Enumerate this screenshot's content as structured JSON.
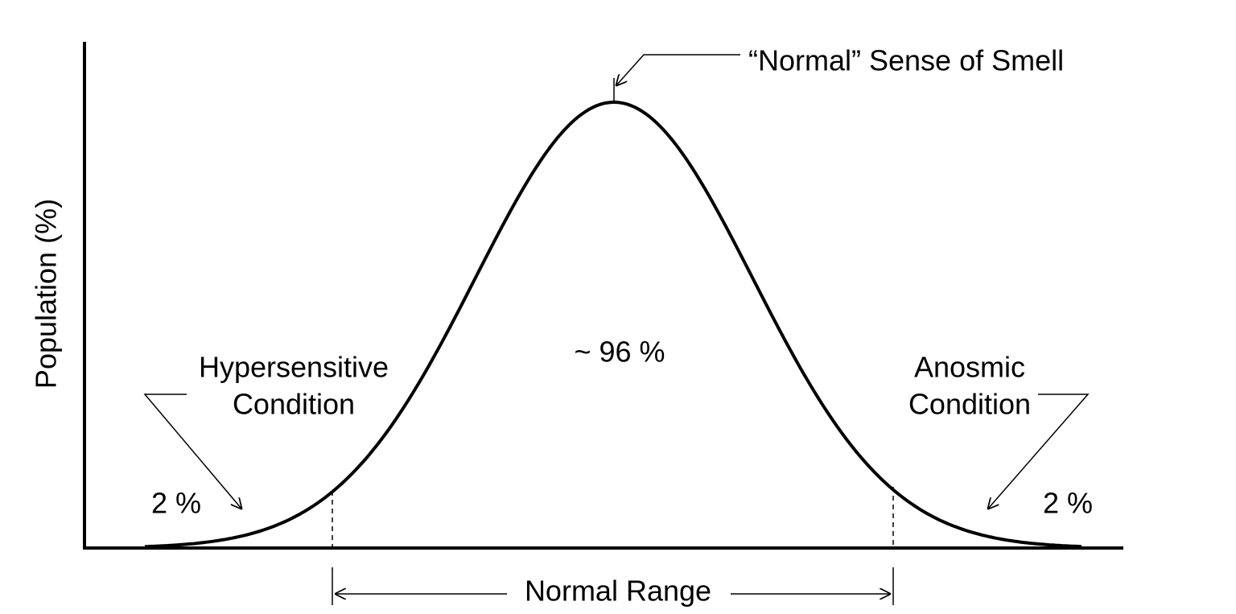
{
  "axis_label": "Population (%)",
  "peak_label": "“Normal” Sense of Smell",
  "center_label": "~ 96 %",
  "left_label": {
    "lines": [
      "Hypersensitive",
      "Condition"
    ],
    "share": "2 %"
  },
  "right_label": {
    "lines": [
      "Anosmic",
      "Condition"
    ],
    "share": "2 %"
  },
  "range_label": "Normal Range"
}
